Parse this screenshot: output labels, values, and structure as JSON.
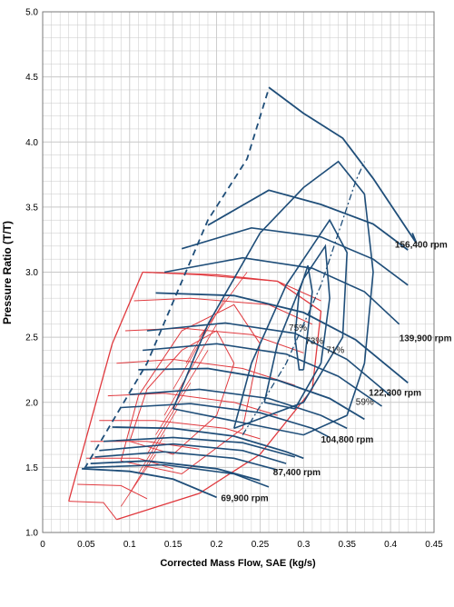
{
  "chart_data": {
    "type": "line",
    "xlabel": "Corrected Mass Flow, SAE (kg/s)",
    "ylabel": "Pressure Ratio (T/T)",
    "xlim": [
      0,
      0.45
    ],
    "ylim": [
      1.0,
      5.0
    ],
    "x_ticks": [
      "0",
      "0.05",
      "0.1",
      "0.15",
      "0.2",
      "0.25",
      "0.3",
      "0.35",
      "0.4",
      "0.45"
    ],
    "y_ticks": [
      "1.0",
      "1.5",
      "2.0",
      "2.5",
      "3.0",
      "3.5",
      "4.0",
      "4.5",
      "5.0"
    ],
    "grid": true,
    "colors": {
      "blue_map": "#1f4e79",
      "red_map": "#e0393e",
      "grid": "#c8c8c8"
    },
    "speed_lines": [
      {
        "label": "69,900 rpm",
        "points": [
          [
            0.045,
            1.49
          ],
          [
            0.1,
            1.47
          ],
          [
            0.15,
            1.41
          ],
          [
            0.2,
            1.27
          ]
        ],
        "label_at": [
          0.205,
          1.24
        ]
      },
      {
        "label": "87,400 rpm",
        "points": [
          [
            0.055,
            1.53
          ],
          [
            0.12,
            1.55
          ],
          [
            0.2,
            1.49
          ],
          [
            0.25,
            1.4
          ]
        ],
        "label_at": [
          0.265,
          1.44
        ]
      },
      {
        "label": "104,800 rpm",
        "points": [
          [
            0.08,
            1.81
          ],
          [
            0.15,
            1.8
          ],
          [
            0.22,
            1.74
          ],
          [
            0.28,
            1.62
          ],
          [
            0.3,
            1.57
          ]
        ],
        "label_at": [
          0.32,
          1.69
        ]
      },
      {
        "label": "122,300 rpm",
        "points": [
          [
            0.11,
            2.25
          ],
          [
            0.19,
            2.26
          ],
          [
            0.27,
            2.17
          ],
          [
            0.33,
            2.03
          ],
          [
            0.37,
            1.87
          ]
        ],
        "label_at": [
          0.375,
          2.05
        ]
      },
      {
        "label": "139,900 rpm",
        "points": [
          [
            0.13,
            2.84
          ],
          [
            0.22,
            2.82
          ],
          [
            0.3,
            2.69
          ],
          [
            0.36,
            2.48
          ],
          [
            0.42,
            2.15
          ]
        ],
        "label_at": [
          0.41,
          2.47
        ]
      },
      {
        "label": "156,400 rpm",
        "points": [
          [
            0.19,
            3.36
          ],
          [
            0.26,
            3.63
          ],
          [
            0.32,
            3.52
          ],
          [
            0.38,
            3.37
          ],
          [
            0.42,
            3.17
          ]
        ],
        "label_at": [
          0.405,
          3.19
        ]
      }
    ],
    "speed_lines_unlabeled": [
      [
        [
          0.05,
          1.5
        ],
        [
          0.14,
          1.52
        ],
        [
          0.22,
          1.45
        ],
        [
          0.26,
          1.35
        ]
      ],
      [
        [
          0.06,
          1.58
        ],
        [
          0.14,
          1.62
        ],
        [
          0.22,
          1.57
        ],
        [
          0.27,
          1.48
        ]
      ],
      [
        [
          0.065,
          1.63
        ],
        [
          0.15,
          1.68
        ],
        [
          0.23,
          1.63
        ],
        [
          0.28,
          1.53
        ]
      ],
      [
        [
          0.07,
          1.7
        ],
        [
          0.15,
          1.73
        ],
        [
          0.23,
          1.69
        ],
        [
          0.29,
          1.58
        ]
      ],
      [
        [
          0.09,
          1.96
        ],
        [
          0.17,
          1.99
        ],
        [
          0.25,
          1.92
        ],
        [
          0.31,
          1.8
        ],
        [
          0.33,
          1.73
        ]
      ],
      [
        [
          0.1,
          2.06
        ],
        [
          0.18,
          2.1
        ],
        [
          0.26,
          2.03
        ],
        [
          0.32,
          1.9
        ],
        [
          0.35,
          1.8
        ]
      ],
      [
        [
          0.115,
          2.4
        ],
        [
          0.2,
          2.45
        ],
        [
          0.28,
          2.37
        ],
        [
          0.34,
          2.2
        ],
        [
          0.39,
          1.97
        ]
      ],
      [
        [
          0.12,
          2.55
        ],
        [
          0.21,
          2.61
        ],
        [
          0.29,
          2.53
        ],
        [
          0.35,
          2.33
        ],
        [
          0.4,
          2.05
        ]
      ],
      [
        [
          0.14,
          3.0
        ],
        [
          0.23,
          3.11
        ],
        [
          0.31,
          3.03
        ],
        [
          0.37,
          2.85
        ],
        [
          0.41,
          2.6
        ]
      ],
      [
        [
          0.16,
          3.18
        ],
        [
          0.24,
          3.34
        ],
        [
          0.32,
          3.27
        ],
        [
          0.38,
          3.1
        ],
        [
          0.42,
          2.9
        ]
      ]
    ],
    "surge_line": {
      "style": "dashed",
      "points": [
        [
          0.048,
          1.49
        ],
        [
          0.12,
          2.3
        ],
        [
          0.19,
          3.4
        ],
        [
          0.235,
          3.87
        ],
        [
          0.26,
          4.41
        ]
      ]
    },
    "outer_boundary": [
      [
        0.26,
        4.42
      ],
      [
        0.3,
        4.22
      ],
      [
        0.345,
        4.03
      ],
      [
        0.38,
        3.72
      ],
      [
        0.43,
        3.22
      ],
      [
        0.425,
        3.3
      ]
    ],
    "choke_dash": {
      "style": "dash-dot",
      "points": [
        [
          0.23,
          1.75
        ],
        [
          0.28,
          2.3
        ],
        [
          0.32,
          2.9
        ],
        [
          0.36,
          3.7
        ],
        [
          0.37,
          3.85
        ]
      ]
    },
    "efficiency_islands": [
      {
        "label": "75%",
        "label_at": [
          0.283,
          2.55
        ],
        "points": [
          [
            0.3,
            2.25
          ],
          [
            0.305,
            2.55
          ],
          [
            0.31,
            2.85
          ],
          [
            0.305,
            3.05
          ],
          [
            0.295,
            2.85
          ],
          [
            0.29,
            2.5
          ],
          [
            0.295,
            2.25
          ],
          [
            0.3,
            2.25
          ]
        ]
      },
      {
        "label": "73%",
        "label_at": [
          0.302,
          2.45
        ],
        "points": [
          [
            0.255,
            2.0
          ],
          [
            0.27,
            2.45
          ],
          [
            0.3,
            2.95
          ],
          [
            0.325,
            3.2
          ],
          [
            0.33,
            2.8
          ],
          [
            0.32,
            2.3
          ],
          [
            0.29,
            1.95
          ],
          [
            0.255,
            2.0
          ]
        ]
      },
      {
        "label": "71%",
        "label_at": [
          0.326,
          2.38
        ],
        "points": [
          [
            0.22,
            1.8
          ],
          [
            0.24,
            2.3
          ],
          [
            0.28,
            2.9
          ],
          [
            0.33,
            3.4
          ],
          [
            0.35,
            3.15
          ],
          [
            0.345,
            2.5
          ],
          [
            0.3,
            2.0
          ],
          [
            0.22,
            1.8
          ]
        ]
      },
      {
        "label": "59%",
        "label_at": [
          0.36,
          1.98
        ],
        "points": [
          [
            0.15,
            1.95
          ],
          [
            0.19,
            2.6
          ],
          [
            0.25,
            3.3
          ],
          [
            0.3,
            3.65
          ],
          [
            0.34,
            3.85
          ],
          [
            0.37,
            3.6
          ],
          [
            0.38,
            3.0
          ],
          [
            0.37,
            2.3
          ],
          [
            0.35,
            1.9
          ],
          [
            0.3,
            1.75
          ],
          [
            0.15,
            1.95
          ]
        ]
      }
    ],
    "red_map": {
      "speed_lines": [
        [
          [
            0.03,
            1.24
          ],
          [
            0.07,
            1.23
          ],
          [
            0.085,
            1.1
          ]
        ],
        [
          [
            0.04,
            1.37
          ],
          [
            0.09,
            1.36
          ],
          [
            0.12,
            1.26
          ]
        ],
        [
          [
            0.05,
            1.57
          ],
          [
            0.11,
            1.57
          ],
          [
            0.15,
            1.49
          ]
        ],
        [
          [
            0.055,
            1.7
          ],
          [
            0.12,
            1.7
          ],
          [
            0.18,
            1.64
          ]
        ],
        [
          [
            0.065,
            1.86
          ],
          [
            0.13,
            1.86
          ],
          [
            0.21,
            1.8
          ],
          [
            0.25,
            1.72
          ]
        ],
        [
          [
            0.075,
            2.05
          ],
          [
            0.14,
            2.07
          ],
          [
            0.22,
            2.0
          ],
          [
            0.27,
            1.9
          ]
        ],
        [
          [
            0.085,
            2.3
          ],
          [
            0.15,
            2.33
          ],
          [
            0.23,
            2.26
          ],
          [
            0.29,
            2.13
          ]
        ],
        [
          [
            0.095,
            2.55
          ],
          [
            0.16,
            2.57
          ],
          [
            0.24,
            2.52
          ],
          [
            0.3,
            2.38
          ]
        ],
        [
          [
            0.105,
            2.78
          ],
          [
            0.17,
            2.8
          ],
          [
            0.26,
            2.75
          ],
          [
            0.31,
            2.6
          ]
        ],
        [
          [
            0.115,
            3.0
          ],
          [
            0.18,
            2.98
          ],
          [
            0.27,
            2.93
          ],
          [
            0.32,
            2.78
          ]
        ]
      ],
      "surge": [
        [
          0.03,
          1.24
        ],
        [
          0.08,
          2.45
        ],
        [
          0.115,
          3.0
        ]
      ],
      "outer": [
        [
          0.115,
          3.0
        ],
        [
          0.2,
          2.98
        ],
        [
          0.27,
          2.93
        ],
        [
          0.32,
          2.7
        ],
        [
          0.31,
          2.1
        ],
        [
          0.25,
          1.6
        ],
        [
          0.18,
          1.3
        ],
        [
          0.085,
          1.1
        ]
      ],
      "efficiency_islands": [
        [
          [
            0.1,
            1.7
          ],
          [
            0.12,
            2.1
          ],
          [
            0.16,
            2.4
          ],
          [
            0.2,
            2.55
          ],
          [
            0.22,
            2.3
          ],
          [
            0.2,
            1.9
          ],
          [
            0.15,
            1.6
          ],
          [
            0.1,
            1.7
          ]
        ],
        [
          [
            0.09,
            1.55
          ],
          [
            0.11,
            2.05
          ],
          [
            0.16,
            2.55
          ],
          [
            0.22,
            2.75
          ],
          [
            0.25,
            2.45
          ],
          [
            0.23,
            1.8
          ],
          [
            0.16,
            1.45
          ],
          [
            0.09,
            1.55
          ]
        ]
      ],
      "choke_ticks": [
        [
          [
            0.09,
            1.2
          ],
          [
            0.13,
            1.6
          ]
        ],
        [
          [
            0.1,
            1.3
          ],
          [
            0.14,
            1.75
          ]
        ],
        [
          [
            0.11,
            1.45
          ],
          [
            0.155,
            1.95
          ]
        ],
        [
          [
            0.12,
            1.6
          ],
          [
            0.17,
            2.15
          ]
        ],
        [
          [
            0.13,
            1.75
          ],
          [
            0.19,
            2.4
          ]
        ],
        [
          [
            0.14,
            1.9
          ],
          [
            0.2,
            2.6
          ]
        ],
        [
          [
            0.15,
            2.1
          ],
          [
            0.21,
            2.8
          ]
        ],
        [
          [
            0.165,
            2.3
          ],
          [
            0.22,
            2.95
          ]
        ],
        [
          [
            0.18,
            2.5
          ],
          [
            0.235,
            3.0
          ]
        ]
      ]
    }
  }
}
